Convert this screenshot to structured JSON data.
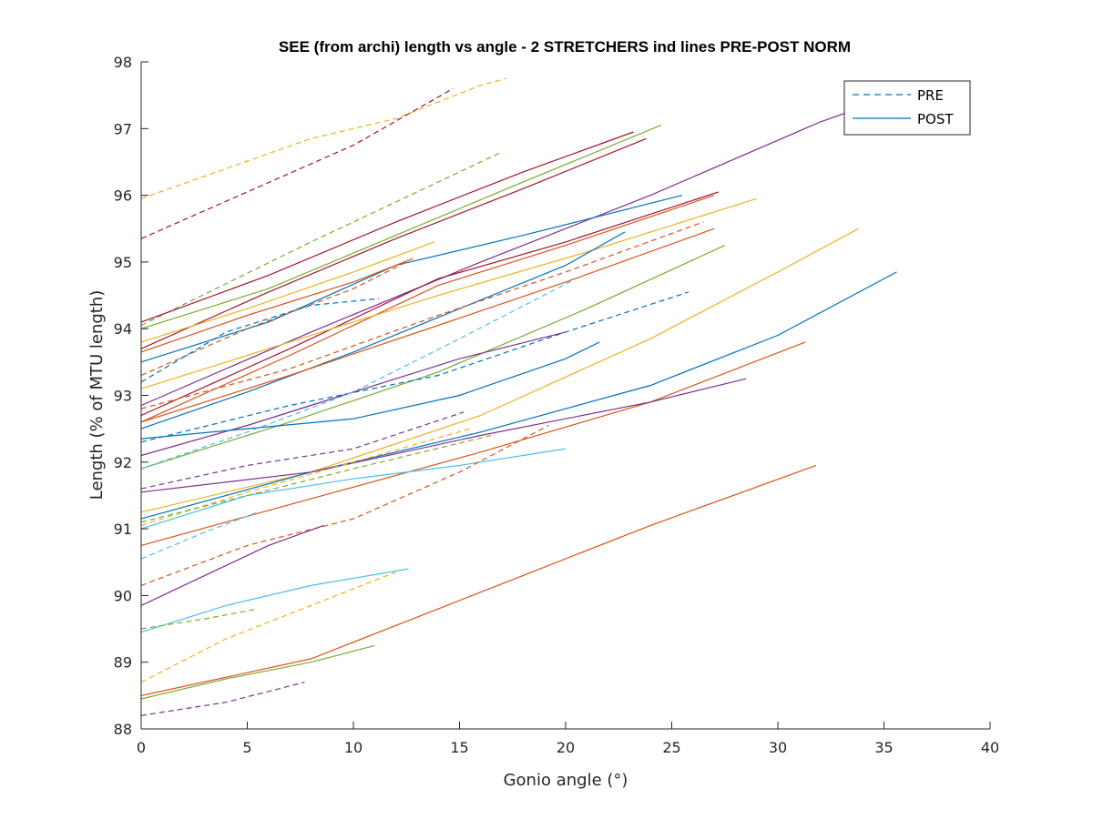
{
  "chart_data": {
    "type": "line",
    "title": "SEE (from archi) length vs angle - 2 STRETCHERS ind lines PRE-POST NORM",
    "xlabel": "Gonio angle (°)",
    "ylabel": "Length (% of MTU length)",
    "xlim": [
      0,
      40
    ],
    "ylim": [
      88,
      98
    ],
    "x_ticks": [
      "0",
      "5",
      "10",
      "15",
      "20",
      "25",
      "30",
      "35",
      "40"
    ],
    "y_ticks": [
      "88",
      "89",
      "90",
      "91",
      "92",
      "93",
      "94",
      "95",
      "96",
      "97",
      "98"
    ],
    "grid": false,
    "legend": {
      "position": "top-right",
      "entries": [
        {
          "label": "PRE",
          "style": "dashed",
          "color": "#0072BD"
        },
        {
          "label": "POST",
          "style": "solid",
          "color": "#0072BD"
        }
      ]
    },
    "series": [
      {
        "style": "dashed",
        "color": "#EDB120",
        "x": [
          0,
          4,
          8,
          12,
          16,
          17.2
        ],
        "y": [
          95.95,
          96.4,
          96.85,
          97.15,
          97.65,
          97.75
        ]
      },
      {
        "style": "dashed",
        "color": "#A2142F",
        "x": [
          0,
          5,
          10,
          14.7
        ],
        "y": [
          95.35,
          96.05,
          96.75,
          97.6
        ]
      },
      {
        "style": "dashed",
        "color": "#77AC30",
        "x": [
          0,
          8,
          17
        ],
        "y": [
          94.05,
          95.3,
          96.65
        ]
      },
      {
        "style": "solid",
        "color": "#A2142F",
        "x": [
          0,
          6,
          12,
          18,
          23.2
        ],
        "y": [
          94.1,
          94.8,
          95.6,
          96.35,
          96.95
        ]
      },
      {
        "style": "solid",
        "color": "#A2142F",
        "x": [
          0,
          6,
          12,
          18,
          23.8
        ],
        "y": [
          93.7,
          94.55,
          95.35,
          96.1,
          96.85
        ]
      },
      {
        "style": "solid",
        "color": "#77AC30",
        "x": [
          0,
          6,
          12,
          18,
          24.5
        ],
        "y": [
          94.0,
          94.6,
          95.4,
          96.2,
          97.05
        ]
      },
      {
        "style": "solid",
        "color": "#7E2F8E",
        "x": [
          0,
          8,
          16,
          24,
          32,
          36
        ],
        "y": [
          92.85,
          93.95,
          95.0,
          96.0,
          97.1,
          97.55
        ]
      },
      {
        "style": "solid",
        "color": "#0072BD",
        "x": [
          0,
          6,
          12,
          18,
          25.5
        ],
        "y": [
          93.5,
          94.1,
          94.95,
          95.4,
          96.0
        ]
      },
      {
        "style": "solid",
        "color": "#A2142F",
        "x": [
          0,
          7,
          14,
          20,
          27.2
        ],
        "y": [
          92.7,
          93.7,
          94.75,
          95.3,
          96.05
        ]
      },
      {
        "style": "solid",
        "color": "#D95319",
        "x": [
          0,
          7,
          14,
          20,
          27.0
        ],
        "y": [
          92.6,
          93.6,
          94.65,
          95.25,
          96.0
        ]
      },
      {
        "style": "solid",
        "color": "#EDB120",
        "x": [
          0,
          7,
          14,
          21,
          29.0
        ],
        "y": [
          93.1,
          93.8,
          94.5,
          95.15,
          95.95
        ]
      },
      {
        "style": "solid",
        "color": "#EDB120",
        "x": [
          0,
          5,
          10,
          13.8
        ],
        "y": [
          93.8,
          94.3,
          94.85,
          95.3
        ]
      },
      {
        "style": "solid",
        "color": "#D95319",
        "x": [
          0,
          5,
          10,
          12.8
        ],
        "y": [
          93.65,
          94.2,
          94.7,
          95.05
        ]
      },
      {
        "style": "dashed",
        "color": "#D95319",
        "x": [
          0,
          5,
          10,
          12.5
        ],
        "y": [
          93.3,
          94.0,
          94.6,
          95.0
        ]
      },
      {
        "style": "dashed",
        "color": "#0072BD",
        "x": [
          0,
          4,
          8,
          11.2
        ],
        "y": [
          93.2,
          93.95,
          94.35,
          94.45
        ]
      },
      {
        "style": "solid",
        "color": "#0072BD",
        "x": [
          0,
          5,
          10,
          15,
          20,
          22.8
        ],
        "y": [
          92.5,
          93.05,
          93.65,
          94.3,
          94.95,
          95.45
        ]
      },
      {
        "style": "dashed",
        "color": "#D95319",
        "x": [
          0,
          7,
          14,
          20,
          26.5
        ],
        "y": [
          92.8,
          93.4,
          94.2,
          94.85,
          95.6
        ]
      },
      {
        "style": "solid",
        "color": "#D95319",
        "x": [
          0,
          7,
          14,
          20,
          27.0
        ],
        "y": [
          92.6,
          93.3,
          94.05,
          94.7,
          95.5
        ]
      },
      {
        "style": "solid",
        "color": "#77AC30",
        "x": [
          0,
          7,
          14,
          21,
          27.5
        ],
        "y": [
          91.9,
          92.6,
          93.35,
          94.3,
          95.25
        ]
      },
      {
        "style": "dashed",
        "color": "#0072BD",
        "x": [
          0,
          7,
          14,
          20,
          25.8
        ],
        "y": [
          92.3,
          92.85,
          93.3,
          93.95,
          94.55
        ]
      },
      {
        "style": "solid",
        "color": "#7E2F8E",
        "x": [
          0,
          5,
          10,
          15,
          20
        ],
        "y": [
          92.1,
          92.55,
          93.05,
          93.55,
          93.95
        ]
      },
      {
        "style": "solid",
        "color": "#0072BD",
        "x": [
          0,
          5,
          10,
          15,
          20,
          21.6
        ],
        "y": [
          92.35,
          92.5,
          92.65,
          93.0,
          93.55,
          93.8
        ]
      },
      {
        "style": "dashed",
        "color": "#4DBEEE",
        "x": [
          0,
          5,
          10,
          15,
          20.5
        ],
        "y": [
          91.9,
          92.45,
          93.05,
          93.85,
          94.75
        ]
      },
      {
        "style": "solid",
        "color": "#EDB120",
        "x": [
          0,
          8,
          16,
          24,
          30,
          33.8
        ],
        "y": [
          91.25,
          91.85,
          92.7,
          93.85,
          94.85,
          95.5
        ]
      },
      {
        "style": "solid",
        "color": "#0072BD",
        "x": [
          0,
          8,
          16,
          24,
          30,
          35.6
        ],
        "y": [
          91.15,
          91.85,
          92.45,
          93.15,
          93.9,
          94.85
        ]
      },
      {
        "style": "solid",
        "color": "#D95319",
        "x": [
          0,
          8,
          16,
          24,
          31.3
        ],
        "y": [
          90.75,
          91.45,
          92.15,
          92.9,
          93.8
        ]
      },
      {
        "style": "solid",
        "color": "#7E2F8E",
        "x": [
          0,
          8,
          16,
          24,
          28.5
        ],
        "y": [
          91.55,
          91.85,
          92.4,
          92.9,
          93.25
        ]
      },
      {
        "style": "solid",
        "color": "#4DBEEE",
        "x": [
          0,
          5,
          10,
          15,
          20
        ],
        "y": [
          91.0,
          91.5,
          91.75,
          91.95,
          92.2
        ]
      },
      {
        "style": "dashed",
        "color": "#D95319",
        "x": [
          0,
          5,
          10,
          15,
          19.2
        ],
        "y": [
          90.15,
          90.75,
          91.15,
          91.85,
          92.55
        ]
      },
      {
        "style": "dashed",
        "color": "#7E2F8E",
        "x": [
          0,
          5,
          10,
          15.2
        ],
        "y": [
          91.6,
          91.95,
          92.2,
          92.75
        ]
      },
      {
        "style": "dashed",
        "color": "#EDB120",
        "x": [
          0,
          5,
          10,
          15.5
        ],
        "y": [
          91.05,
          91.55,
          92.0,
          92.5
        ]
      },
      {
        "style": "dashed",
        "color": "#77AC30",
        "x": [
          0,
          5,
          10,
          16.5
        ],
        "y": [
          91.1,
          91.5,
          91.9,
          92.4
        ]
      },
      {
        "style": "solid",
        "color": "#7E2F8E",
        "x": [
          0,
          3,
          6,
          8.6
        ],
        "y": [
          89.85,
          90.3,
          90.75,
          91.05
        ]
      },
      {
        "style": "dashed",
        "color": "#4DBEEE",
        "x": [
          0,
          3,
          5.5
        ],
        "y": [
          90.55,
          90.95,
          91.25
        ]
      },
      {
        "style": "solid",
        "color": "#4DBEEE",
        "x": [
          0,
          4,
          8,
          12.6
        ],
        "y": [
          89.45,
          89.85,
          90.15,
          90.4
        ]
      },
      {
        "style": "dashed",
        "color": "#EDB120",
        "x": [
          0,
          4,
          8,
          12
        ],
        "y": [
          88.7,
          89.35,
          89.85,
          90.35
        ]
      },
      {
        "style": "dashed",
        "color": "#77AC30",
        "x": [
          0,
          3,
          5.5
        ],
        "y": [
          89.5,
          89.65,
          89.8
        ]
      },
      {
        "style": "solid",
        "color": "#D95319",
        "x": [
          0,
          8,
          16,
          24,
          31.8
        ],
        "y": [
          88.5,
          89.05,
          90.05,
          91.05,
          91.95
        ]
      },
      {
        "style": "solid",
        "color": "#77AC30",
        "x": [
          0,
          4,
          8,
          11
        ],
        "y": [
          88.45,
          88.75,
          89.0,
          89.25
        ]
      },
      {
        "style": "dashed",
        "color": "#7E2F8E",
        "x": [
          0,
          4,
          7.7
        ],
        "y": [
          88.2,
          88.4,
          88.7
        ]
      }
    ]
  }
}
